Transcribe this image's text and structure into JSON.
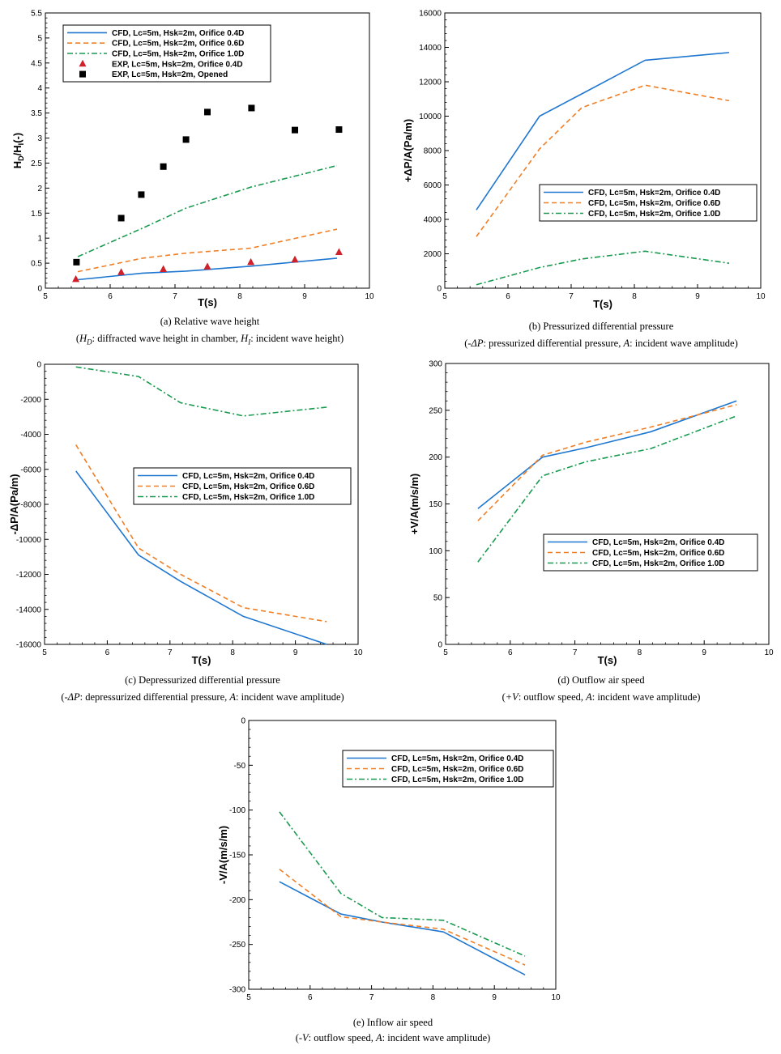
{
  "colors": {
    "orifice_04": "#1f77d0",
    "orifice_06": "#f07f26",
    "orifice_10": "#1a9a50",
    "exp_04": "#d0202a",
    "exp_opened": "#000000"
  },
  "chart_data": [
    {
      "id": "a",
      "type": "line",
      "title": "(a) Relative wave height",
      "caption": {
        "symbol1": "H",
        "sub1": "D",
        "text1": ": diffracted wave height in chamber, ",
        "symbol2": "H",
        "sub2": "I",
        "text2": ": incident wave height"
      },
      "xlabel": "T(s)",
      "ylabel": "H_D/H_I(-)",
      "ylabel_main": "H",
      "ylabel_sub1": "D",
      "ylabel_mid": "/H",
      "ylabel_sub2": "I",
      "ylabel_end": "(-)",
      "xlim": [
        5,
        10
      ],
      "ylim": [
        0,
        5.5
      ],
      "xticks": [
        "5",
        "6",
        "7",
        "8",
        "9",
        "10"
      ],
      "yticks": [
        "0",
        "0.5",
        "1",
        "1.5",
        "2",
        "2.5",
        "3",
        "3.5",
        "4",
        "4.5",
        "5",
        "5.5"
      ],
      "legend_position": "top-left",
      "series": [
        {
          "name": "CFD, Lc=5m, Hsk=2m, Orifice 0.4D",
          "style": "solid",
          "color_key": "orifice_04",
          "x": [
            5.5,
            6.5,
            7.17,
            8.17,
            9.5
          ],
          "y": [
            0.17,
            0.3,
            0.34,
            0.44,
            0.6
          ]
        },
        {
          "name": "CFD, Lc=5m, Hsk=2m, Orifice 0.6D",
          "style": "dash",
          "color_key": "orifice_06",
          "x": [
            5.5,
            6.5,
            7.17,
            8.17,
            9.5
          ],
          "y": [
            0.33,
            0.6,
            0.7,
            0.8,
            1.18
          ]
        },
        {
          "name": "CFD, Lc=5m, Hsk=2m, Orifice 1.0D",
          "style": "dashdot",
          "color_key": "orifice_10",
          "x": [
            5.5,
            6.5,
            7.17,
            8.17,
            9.5
          ],
          "y": [
            0.63,
            1.2,
            1.6,
            2.02,
            2.45
          ]
        },
        {
          "name": "EXP, Lc=5m, Hsk=2m, Orifice 0.4D",
          "style": "triangle",
          "color_key": "exp_04",
          "x": [
            5.47,
            6.17,
            6.82,
            7.5,
            8.17,
            8.85,
            9.53
          ],
          "y": [
            0.18,
            0.32,
            0.38,
            0.43,
            0.52,
            0.57,
            0.72
          ]
        },
        {
          "name": "EXP, Lc=5m, Hsk=2m, Opened",
          "style": "square",
          "color_key": "exp_opened",
          "x": [
            5.48,
            6.17,
            6.48,
            6.82,
            7.17,
            7.5,
            8.18,
            8.85,
            9.53
          ],
          "y": [
            0.52,
            1.4,
            1.87,
            2.43,
            2.97,
            3.52,
            3.6,
            3.16,
            3.17
          ]
        }
      ]
    },
    {
      "id": "b",
      "type": "line",
      "title": "(b) Pressurized differential pressure",
      "caption": {
        "symbol1": "-ΔP",
        "text1": ": pressurized differential pressure, ",
        "symbol2": "A",
        "text2": ": incident wave amplitude"
      },
      "xlabel": "T(s)",
      "ylabel": "+ΔP/A(Pa/m)",
      "xlim": [
        5,
        10
      ],
      "ylim": [
        0,
        16000
      ],
      "xticks": [
        "5",
        "6",
        "7",
        "8",
        "9",
        "10"
      ],
      "yticks": [
        "0",
        "2000",
        "4000",
        "6000",
        "8000",
        "10000",
        "12000",
        "14000",
        "16000"
      ],
      "legend_position": "center-right",
      "series": [
        {
          "name": "CFD, Lc=5m, Hsk=2m, Orifice 0.4D",
          "style": "solid",
          "color_key": "orifice_04",
          "x": [
            5.5,
            6.5,
            7.17,
            8.17,
            9.5
          ],
          "y": [
            4550,
            10000,
            11300,
            13250,
            13700
          ]
        },
        {
          "name": "CFD, Lc=5m, Hsk=2m, Orifice 0.6D",
          "style": "dash",
          "color_key": "orifice_06",
          "x": [
            5.5,
            6.5,
            7.17,
            8.17,
            9.5
          ],
          "y": [
            3000,
            8100,
            10500,
            11800,
            10900
          ]
        },
        {
          "name": "CFD, Lc=5m, Hsk=2m, Orifice 1.0D",
          "style": "dashdot",
          "color_key": "orifice_10",
          "x": [
            5.5,
            6.5,
            7.17,
            8.17,
            9.5
          ],
          "y": [
            200,
            1200,
            1700,
            2150,
            1450
          ]
        }
      ]
    },
    {
      "id": "c",
      "type": "line",
      "title": "(c) Depressurized differential pressure",
      "caption": {
        "symbol1": "-ΔP",
        "text1": ": depressurized differential pressure, ",
        "symbol2": "A",
        "text2": ": incident wave amplitude"
      },
      "xlabel": "T(s)",
      "ylabel": "-ΔP/A(Pa/m)",
      "xlim": [
        5,
        10
      ],
      "ylim": [
        -16000,
        0
      ],
      "xticks": [
        "5",
        "6",
        "7",
        "8",
        "9",
        "10"
      ],
      "yticks": [
        "-16000",
        "-14000",
        "-12000",
        "-10000",
        "-8000",
        "-6000",
        "-4000",
        "-2000",
        "0"
      ],
      "legend_position": "center-right",
      "series": [
        {
          "name": "CFD, Lc=5m, Hsk=2m, Orifice 0.4D",
          "style": "solid",
          "color_key": "orifice_04",
          "x": [
            5.5,
            6.5,
            7.17,
            8.17,
            9.5
          ],
          "y": [
            -6100,
            -10900,
            -12400,
            -14400,
            -16000
          ]
        },
        {
          "name": "CFD, Lc=5m, Hsk=2m, Orifice 0.6D",
          "style": "dash",
          "color_key": "orifice_06",
          "x": [
            5.5,
            6.5,
            7.17,
            8.17,
            9.5
          ],
          "y": [
            -4600,
            -10500,
            -12000,
            -13900,
            -14700
          ]
        },
        {
          "name": "CFD, Lc=5m, Hsk=2m, Orifice 1.0D",
          "style": "dashdot",
          "color_key": "orifice_10",
          "x": [
            5.5,
            6.5,
            7.17,
            8.17,
            9.5
          ],
          "y": [
            -150,
            -700,
            -2200,
            -2950,
            -2450
          ]
        }
      ]
    },
    {
      "id": "d",
      "type": "line",
      "title": "(d) Outflow air speed",
      "caption": {
        "symbol1": "+V",
        "text1": ": outflow speed, ",
        "symbol2": "A",
        "text2": ": incident wave amplitude"
      },
      "xlabel": "T(s)",
      "ylabel": "+V/A(m/s/m)",
      "xlim": [
        5,
        10
      ],
      "ylim": [
        0,
        300
      ],
      "xticks": [
        "5",
        "6",
        "7",
        "8",
        "9",
        "10"
      ],
      "yticks": [
        "0",
        "50",
        "100",
        "150",
        "200",
        "250",
        "300"
      ],
      "legend_position": "lower-right",
      "series": [
        {
          "name": "CFD, Lc=5m, Hsk=2m, Orifice 0.4D",
          "style": "solid",
          "color_key": "orifice_04",
          "x": [
            5.5,
            6.5,
            7.17,
            8.17,
            9.5
          ],
          "y": [
            145,
            200,
            210,
            227,
            260
          ]
        },
        {
          "name": "CFD, Lc=5m, Hsk=2m, Orifice 0.6D",
          "style": "dash",
          "color_key": "orifice_06",
          "x": [
            5.5,
            6.5,
            7.17,
            8.17,
            9.5
          ],
          "y": [
            132,
            202,
            216,
            232,
            256
          ]
        },
        {
          "name": "CFD, Lc=5m, Hsk=2m, Orifice 1.0D",
          "style": "dashdot",
          "color_key": "orifice_10",
          "x": [
            5.5,
            6.5,
            7.17,
            8.17,
            9.5
          ],
          "y": [
            88,
            180,
            195,
            209,
            244
          ]
        }
      ]
    },
    {
      "id": "e",
      "type": "line",
      "title": "(e) Inflow air speed",
      "caption": {
        "symbol1": "-V",
        "text1": ": outflow speed, ",
        "symbol2": "A",
        "text2": ": incident wave amplitude"
      },
      "xlabel": "",
      "ylabel": "-V/A(m/s/m)",
      "xlim": [
        5,
        10
      ],
      "ylim": [
        -300,
        0
      ],
      "xticks": [
        "5",
        "6",
        "7",
        "8",
        "9",
        "10"
      ],
      "yticks": [
        "-300",
        "-250",
        "-200",
        "-150",
        "-100",
        "-50",
        "0"
      ],
      "legend_position": "top-right",
      "series": [
        {
          "name": "CFD, Lc=5m, Hsk=2m, Orifice 0.4D",
          "style": "solid",
          "color_key": "orifice_04",
          "x": [
            5.5,
            6.5,
            7.17,
            8.17,
            9.5
          ],
          "y": [
            -180,
            -216,
            -225,
            -236,
            -284
          ]
        },
        {
          "name": "CFD, Lc=5m, Hsk=2m, Orifice 0.6D",
          "style": "dash",
          "color_key": "orifice_06",
          "x": [
            5.5,
            6.5,
            7.17,
            8.17,
            9.5
          ],
          "y": [
            -166,
            -219,
            -225,
            -233,
            -273
          ]
        },
        {
          "name": "CFD, Lc=5m, Hsk=2m, Orifice 1.0D",
          "style": "dashdot",
          "color_key": "orifice_10",
          "x": [
            5.5,
            6.5,
            7.17,
            8.17,
            9.5
          ],
          "y": [
            -102,
            -193,
            -220,
            -223,
            -263
          ]
        }
      ]
    }
  ]
}
